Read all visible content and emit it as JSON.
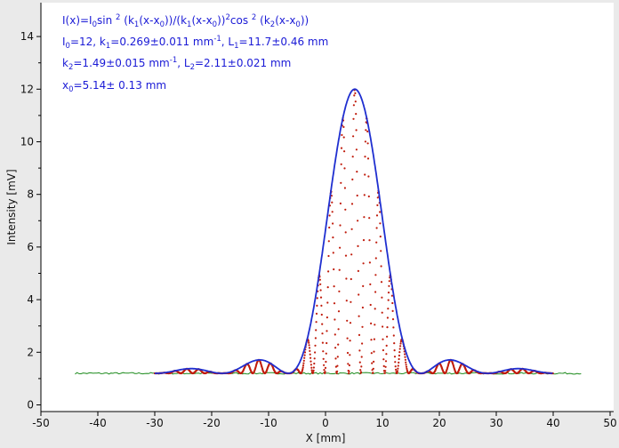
{
  "chart_data": {
    "type": "scatter",
    "xlabel": "X [mm]",
    "ylabel": "Intensity [mV]",
    "xlim": [
      -50,
      50
    ],
    "ylim": [
      0,
      15
    ],
    "xticks": [
      "-50",
      "-40",
      "-30",
      "-20",
      "-10",
      "0",
      "10",
      "20",
      "30",
      "40",
      "50"
    ],
    "yticks": [
      "0",
      "2",
      "4",
      "6",
      "8",
      "10",
      "12",
      "14"
    ],
    "grid": false,
    "annotations": [
      {
        "id": "formula",
        "parts": [
          {
            "t": "I(x)=I"
          },
          {
            "t": "0",
            "s": "sub"
          },
          {
            "t": "sin "
          },
          {
            "t": "2",
            "s": "sup"
          },
          {
            "t": " (k"
          },
          {
            "t": "1",
            "s": "sub"
          },
          {
            "t": "(x-x"
          },
          {
            "t": "0",
            "s": "sub"
          },
          {
            "t": "))/(k"
          },
          {
            "t": "1",
            "s": "sub"
          },
          {
            "t": "(x-x"
          },
          {
            "t": "0",
            "s": "sub"
          },
          {
            "t": "))"
          },
          {
            "t": "2",
            "s": "sup"
          },
          {
            "t": "cos "
          },
          {
            "t": "2",
            "s": "sup"
          },
          {
            "t": " (k"
          },
          {
            "t": "2",
            "s": "sub"
          },
          {
            "t": "(x-x"
          },
          {
            "t": "0",
            "s": "sub"
          },
          {
            "t": "))"
          }
        ]
      },
      {
        "id": "params-1",
        "parts": [
          {
            "t": "I"
          },
          {
            "t": "0",
            "s": "sub"
          },
          {
            "t": "=12,  k"
          },
          {
            "t": "1",
            "s": "sub"
          },
          {
            "t": "=0.269±0.011 mm"
          },
          {
            "t": "-1",
            "s": "sup"
          },
          {
            "t": ",   L"
          },
          {
            "t": "1",
            "s": "sub"
          },
          {
            "t": "=11.7±0.46 mm"
          }
        ]
      },
      {
        "id": "params-2",
        "parts": [
          {
            "t": "k"
          },
          {
            "t": "2",
            "s": "sub"
          },
          {
            "t": "=1.49±0.015 mm"
          },
          {
            "t": "-1",
            "s": "sup"
          },
          {
            "t": ",   L"
          },
          {
            "t": "2",
            "s": "sub"
          },
          {
            "t": "=2.11±0.021 mm"
          }
        ]
      },
      {
        "id": "params-3",
        "parts": [
          {
            "t": "x"
          },
          {
            "t": "0",
            "s": "sub"
          },
          {
            "t": "=5.14±  0.13 mm"
          }
        ]
      }
    ],
    "fit": {
      "model": "I(x)=I0 sin^2(k1(x-x0))/(k1(x-x0))^2 cos^2(k2(x-x0))",
      "I0": 12,
      "k1": 0.269,
      "k2": 1.49,
      "x0": 5.14,
      "baseline": 1.2,
      "x_range": [
        -30,
        40
      ]
    },
    "series": [
      {
        "color": "#1f2fd0",
        "style": "line",
        "role": "envelope",
        "x_range": [
          -30,
          40
        ]
      },
      {
        "color": "#c01c0c",
        "style": "points",
        "role": "measured",
        "x_range": [
          -30,
          40
        ]
      },
      {
        "color": "#1b8a1b",
        "style": "line",
        "role": "baseline",
        "x_range": [
          -44,
          45
        ],
        "level": 1.2
      }
    ]
  }
}
